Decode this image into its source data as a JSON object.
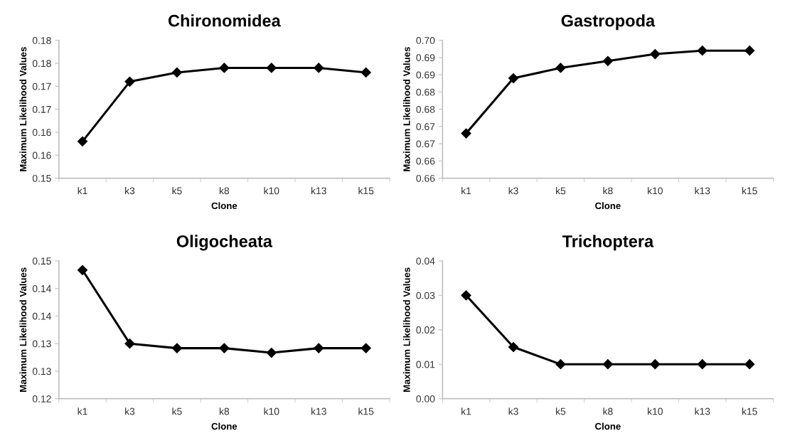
{
  "chart_data": [
    {
      "type": "line",
      "title": "Chironomidea",
      "xlabel": "Clone",
      "ylabel": "Maximum Likelihood Values",
      "categories": [
        "k1",
        "k3",
        "k5",
        "k8",
        "k10",
        "k13",
        "k15"
      ],
      "values": [
        0.158,
        0.171,
        0.173,
        0.174,
        0.174,
        0.174,
        0.173
      ],
      "color": "#000000",
      "marker": "diamond",
      "line_style": "solid",
      "grid": false,
      "legend": false,
      "ylim": [
        0.15,
        0.18
      ],
      "yticks": [
        {
          "value": 0.15,
          "label": "0.15"
        },
        {
          "value": 0.155,
          "label": "0.16"
        },
        {
          "value": 0.16,
          "label": "0.16"
        },
        {
          "value": 0.165,
          "label": "0.17"
        },
        {
          "value": 0.17,
          "label": "0.17"
        },
        {
          "value": 0.175,
          "label": "0.18"
        },
        {
          "value": 0.18,
          "label": "0.18"
        }
      ]
    },
    {
      "type": "line",
      "title": "Gastropoda",
      "xlabel": "Clone",
      "ylabel": "Maximum Likelihood Values",
      "categories": [
        "k1",
        "k3",
        "k5",
        "k8",
        "k10",
        "k13",
        "k15"
      ],
      "values": [
        0.673,
        0.689,
        0.692,
        0.694,
        0.696,
        0.697,
        0.697
      ],
      "color": "#000000",
      "marker": "diamond",
      "line_style": "solid",
      "grid": false,
      "legend": false,
      "ylim": [
        0.66,
        0.7
      ],
      "yticks": [
        {
          "value": 0.66,
          "label": "0.66"
        },
        {
          "value": 0.665,
          "label": "0.66"
        },
        {
          "value": 0.67,
          "label": "0.67"
        },
        {
          "value": 0.675,
          "label": "0.67"
        },
        {
          "value": 0.68,
          "label": "0.68"
        },
        {
          "value": 0.685,
          "label": "0.68"
        },
        {
          "value": 0.69,
          "label": "0.69"
        },
        {
          "value": 0.695,
          "label": "0.69"
        },
        {
          "value": 0.7,
          "label": "0.70"
        }
      ]
    },
    {
      "type": "line",
      "title": "Oligocheata",
      "xlabel": "Clone",
      "ylabel": "Maximum Likelihood Values",
      "categories": [
        "k1",
        "k3",
        "k5",
        "k8",
        "k10",
        "k13",
        "k15"
      ],
      "values": [
        0.148,
        0.132,
        0.131,
        0.131,
        0.13,
        0.131,
        0.131
      ],
      "color": "#000000",
      "marker": "diamond",
      "line_style": "solid",
      "grid": false,
      "legend": false,
      "ylim": [
        0.12,
        0.15
      ],
      "yticks": [
        {
          "value": 0.12,
          "label": "0.12"
        },
        {
          "value": 0.126,
          "label": "0.13"
        },
        {
          "value": 0.132,
          "label": "0.13"
        },
        {
          "value": 0.138,
          "label": "0.14"
        },
        {
          "value": 0.144,
          "label": "0.14"
        },
        {
          "value": 0.15,
          "label": "0.15"
        }
      ]
    },
    {
      "type": "line",
      "title": "Trichoptera",
      "xlabel": "Clone",
      "ylabel": "Maximum Likelihood Values",
      "categories": [
        "k1",
        "k3",
        "k5",
        "k8",
        "k10",
        "k13",
        "k15"
      ],
      "values": [
        0.03,
        0.015,
        0.01,
        0.01,
        0.01,
        0.01,
        0.01
      ],
      "color": "#000000",
      "marker": "diamond",
      "line_style": "solid",
      "grid": false,
      "legend": false,
      "ylim": [
        0.0,
        0.04
      ],
      "yticks": [
        {
          "value": 0.0,
          "label": "0.00"
        },
        {
          "value": 0.01,
          "label": "0.01"
        },
        {
          "value": 0.02,
          "label": "0.02"
        },
        {
          "value": 0.03,
          "label": "0.03"
        },
        {
          "value": 0.04,
          "label": "0.04"
        }
      ]
    }
  ]
}
